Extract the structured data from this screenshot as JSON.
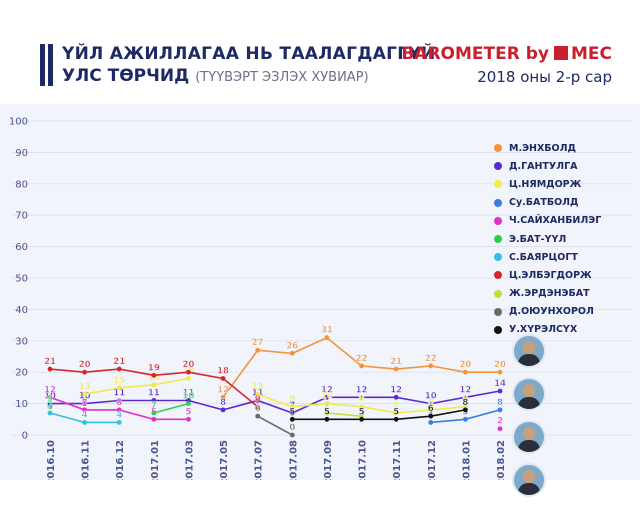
{
  "header": {
    "title_line1": "ҮЙЛ АЖИЛЛАГАА НЬ ТААЛАГДАГГҮЙ",
    "title_line2": "УЛС ТӨРЧИД",
    "title_sub": "(ТҮҮВЭРТ ЭЗЛЭХ ХУВИАР)",
    "brand_text": "BAROMETER by",
    "brand_logo_text": "MEC",
    "date_label": "2018 оны 2-р сар"
  },
  "colors": {
    "title": "#1f2a64",
    "brand": "#c8202f",
    "background": "#f1f4fa"
  },
  "chart_data": {
    "type": "line",
    "title": "ҮЙЛ АЖИЛЛАГАА НЬ ТААЛАГДАГГҮЙ УЛС ТӨРЧИД",
    "subtitle": "(ТҮҮВЭРТ ЭЗЛЭХ ХУВИАР)",
    "xlabel": "",
    "ylabel": "",
    "ylim": [
      0,
      100
    ],
    "yticks": [
      0,
      10,
      20,
      30,
      40,
      50,
      60,
      70,
      80,
      90,
      100
    ],
    "grid": true,
    "legend_position": "right",
    "categories": [
      "2016.10",
      "2016.11",
      "2016.12",
      "2017.01",
      "2017.03",
      "2017.05",
      "2017.07",
      "2017.08",
      "2017.09",
      "2017.10",
      "2017.11",
      "2017.12",
      "2018.01",
      "2018.02"
    ],
    "series": [
      {
        "name": "М.ЭНХБОЛД",
        "color": "#f0953a",
        "values": [
          null,
          null,
          null,
          null,
          null,
          12,
          27,
          26,
          31,
          22,
          21,
          22,
          20,
          20
        ]
      },
      {
        "name": "Д.ГАНТУЛГА",
        "color": "#5b2bd1",
        "values": [
          10,
          10,
          11,
          11,
          11,
          8,
          11,
          7,
          12,
          12,
          12,
          10,
          12,
          14
        ]
      },
      {
        "name": "Ц.НЯМДОРЖ",
        "color": "#f2e94a",
        "values": [
          null,
          13,
          15,
          16,
          18,
          null,
          13,
          9,
          10,
          9,
          7,
          8,
          9,
          null
        ]
      },
      {
        "name": "Су.БАТБОЛД",
        "color": "#3a7ee0",
        "values": [
          null,
          null,
          null,
          null,
          null,
          null,
          null,
          null,
          null,
          null,
          null,
          4,
          5,
          8
        ]
      },
      {
        "name": "Ч.САЙХАНБИЛЭГ",
        "color": "#e32ec9",
        "values": [
          12,
          8,
          8,
          5,
          5,
          null,
          null,
          null,
          null,
          null,
          null,
          null,
          null,
          2
        ]
      },
      {
        "name": "Э.БАТ-ҮҮЛ",
        "color": "#33cc4a",
        "values": [
          9,
          null,
          null,
          7,
          10,
          null,
          null,
          null,
          null,
          null,
          null,
          null,
          null,
          null
        ]
      },
      {
        "name": "С.БАЯРЦОГТ",
        "color": "#35bfe0",
        "values": [
          7,
          4,
          4,
          null,
          null,
          null,
          null,
          null,
          null,
          null,
          null,
          null,
          null,
          null
        ]
      },
      {
        "name": "Ц.ЭЛБЭГДОРЖ",
        "color": "#d6262c",
        "values": [
          21,
          20,
          21,
          19,
          20,
          18,
          9,
          null,
          null,
          null,
          null,
          null,
          null,
          null
        ]
      },
      {
        "name": "Ж.ЭРДЭНЭБАТ",
        "color": "#c4de3c",
        "values": [
          null,
          null,
          null,
          null,
          null,
          null,
          null,
          null,
          7,
          6,
          null,
          null,
          null,
          null
        ]
      },
      {
        "name": "Д.ОЮУНХОРОЛ",
        "color": "#6b6b6b",
        "values": [
          null,
          null,
          null,
          null,
          null,
          null,
          6,
          0,
          null,
          null,
          null,
          null,
          null,
          null
        ]
      },
      {
        "name": "У.ХҮРЭЛСҮХ",
        "color": "#111111",
        "values": [
          null,
          null,
          null,
          null,
          null,
          null,
          null,
          5,
          5,
          5,
          5,
          6,
          8,
          null
        ]
      }
    ]
  }
}
